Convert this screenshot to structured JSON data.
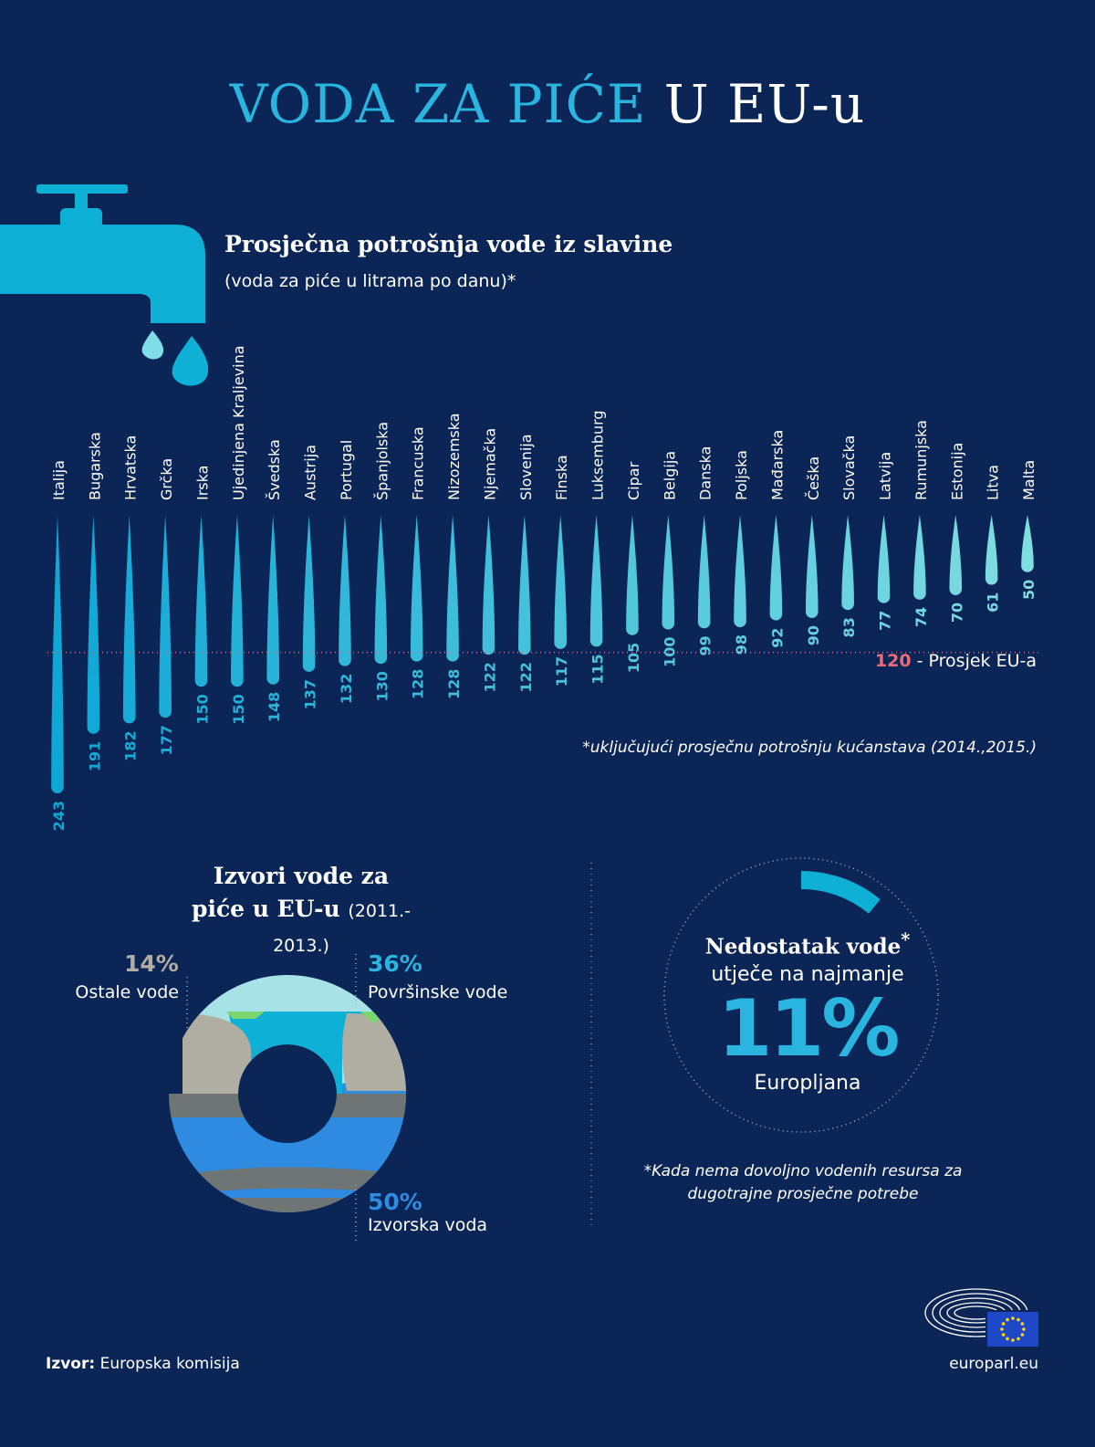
{
  "header": {
    "title_part1": "VODA ZA PIĆE",
    "title_part2": "U EU-u"
  },
  "colors": {
    "background": "#0b2556",
    "accent": "#29b5e0",
    "average": "#e86d7a",
    "surface": "#a6e2e6",
    "spring": "#2e8be0",
    "other": "#b0aea3"
  },
  "chart_data": [
    {
      "type": "bar",
      "title": "Prosječna potrošnja vode iz slavine",
      "subtitle": "(voda za piće u litrama po danu)*",
      "categories": [
        "Italija",
        "Bugarska",
        "Hrvatska",
        "Grčka",
        "Irska",
        "Ujedinjena Kraljevina",
        "Švedska",
        "Austrija",
        "Portugal",
        "Španjolska",
        "Francuska",
        "Nizozemska",
        "Njemačka",
        "Slovenija",
        "Finska",
        "Luksemburg",
        "Cipar",
        "Belgija",
        "Danska",
        "Poljska",
        "Mađarska",
        "Češka",
        "Slovačka",
        "Latvija",
        "Rumunjska",
        "Estonija",
        "Litva",
        "Malta"
      ],
      "values": [
        243,
        191,
        182,
        177,
        150,
        150,
        148,
        137,
        132,
        130,
        128,
        128,
        122,
        122,
        117,
        115,
        105,
        100,
        99,
        98,
        92,
        90,
        83,
        77,
        74,
        70,
        61,
        50
      ],
      "reference_line": {
        "value": 120,
        "label": "- Prosjek EU-a"
      },
      "footnote": "*uključujući prosječnu potrošnju kućanstava (2014.,2015.)"
    },
    {
      "type": "pie",
      "title_line1": "Izvori vode za",
      "title_line2": "piće u EU-u",
      "title_years": "(2011.- 2013.)",
      "slices": [
        {
          "label": "Površinske vode",
          "value": 36,
          "pct_text": "36%"
        },
        {
          "label": "Izvorska voda",
          "value": 50,
          "pct_text": "50%"
        },
        {
          "label": "Ostale vode",
          "value": 14,
          "pct_text": "14%"
        }
      ]
    }
  ],
  "scarcity": {
    "line1": "Nedostatak vode",
    "star": "*",
    "line2": "utječe na najmanje",
    "percent_text": "11%",
    "percent": 11,
    "line3": "Europljana",
    "footnote": "*Kada nema dovoljno vodenih resursa za dugotrajne prosječne potrebe"
  },
  "footer": {
    "source_label": "Izvor:",
    "source_text": "Europska komisija",
    "site": "europarl.eu"
  }
}
